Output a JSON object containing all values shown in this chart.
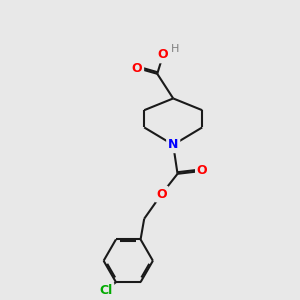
{
  "bg_color": "#e8e8e8",
  "bond_color": "#1a1a1a",
  "N_color": "#0000ff",
  "O_color": "#ff0000",
  "Cl_color": "#00aa00",
  "H_color": "#808080",
  "line_width": 1.5,
  "dbo": 0.055,
  "figsize": [
    3.0,
    3.0
  ],
  "dpi": 100,
  "xlim": [
    0,
    10
  ],
  "ylim": [
    0,
    10
  ]
}
